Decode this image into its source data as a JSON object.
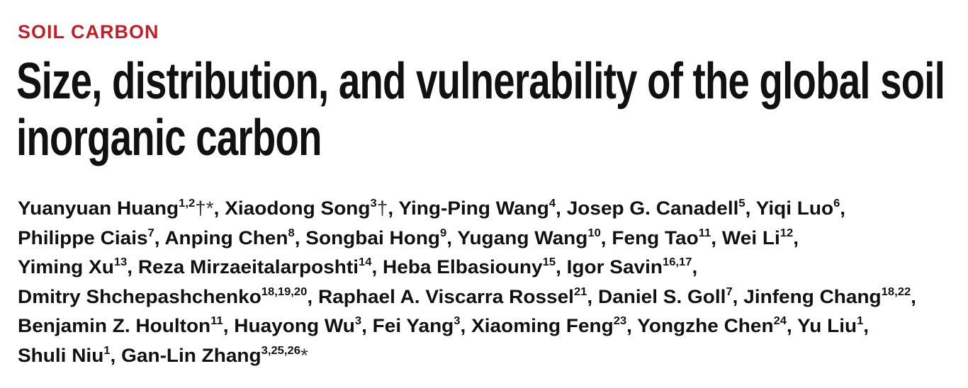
{
  "section_label": "SOIL CARBON",
  "title_lines": [
    "Size, distribution, and vulnerability of the global soil",
    "inorganic carbon"
  ],
  "authors": {
    "separator": ",",
    "lines": [
      [
        {
          "name": "Yuanyuan Huang",
          "affiliations": "1,2",
          "notes": "†*"
        },
        {
          "name": "Xiaodong Song",
          "affiliations": "3",
          "notes": "†"
        },
        {
          "name": "Ying-Ping Wang",
          "affiliations": "4"
        },
        {
          "name": "Josep G. Canadell",
          "affiliations": "5"
        },
        {
          "name": "Yiqi Luo",
          "affiliations": "6"
        }
      ],
      [
        {
          "name": "Philippe Ciais",
          "affiliations": "7"
        },
        {
          "name": "Anping Chen",
          "affiliations": "8"
        },
        {
          "name": "Songbai Hong",
          "affiliations": "9"
        },
        {
          "name": "Yugang Wang",
          "affiliations": "10"
        },
        {
          "name": "Feng Tao",
          "affiliations": "11"
        },
        {
          "name": "Wei Li",
          "affiliations": "12"
        }
      ],
      [
        {
          "name": "Yiming Xu",
          "affiliations": "13"
        },
        {
          "name": "Reza Mirzaeitalarposhti",
          "affiliations": "14"
        },
        {
          "name": "Heba Elbasiouny",
          "affiliations": "15"
        },
        {
          "name": "Igor Savin",
          "affiliations": "16,17"
        }
      ],
      [
        {
          "name": "Dmitry Shchepashchenko",
          "affiliations": "18,19,20"
        },
        {
          "name": "Raphael A. Viscarra Rossel",
          "affiliations": "21"
        },
        {
          "name": "Daniel S. Goll",
          "affiliations": "7"
        },
        {
          "name": "Jinfeng Chang",
          "affiliations": "18,22"
        }
      ],
      [
        {
          "name": "Benjamin Z. Houlton",
          "affiliations": "11"
        },
        {
          "name": "Huayong Wu",
          "affiliations": "3"
        },
        {
          "name": "Fei Yang",
          "affiliations": "3"
        },
        {
          "name": "Xiaoming Feng",
          "affiliations": "23"
        },
        {
          "name": "Yongzhe Chen",
          "affiliations": "24"
        },
        {
          "name": "Yu Liu",
          "affiliations": "1"
        }
      ],
      [
        {
          "name": "Shuli Niu",
          "affiliations": "1"
        },
        {
          "name": "Gan-Lin Zhang",
          "affiliations": "3,25,26",
          "notes": "*"
        }
      ]
    ]
  }
}
